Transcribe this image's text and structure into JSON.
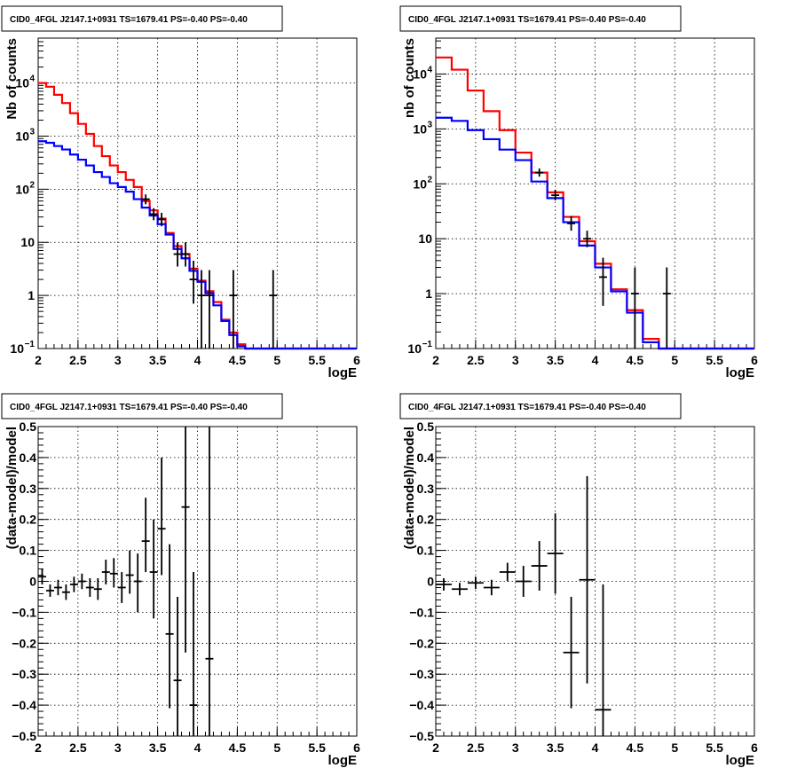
{
  "chart_data": [
    {
      "type": "line",
      "title": "CID0_4FGL J2147.1+0931 TS=1679.41 PS=-0.40 PS=-0.40",
      "xlabel": "logE",
      "ylabel": "Nb of counts",
      "xlim": [
        2,
        6
      ],
      "ylim": [
        0.1,
        70000
      ],
      "yscale": "log",
      "grid": true,
      "x_ticks": [
        "2",
        "2.5",
        "3",
        "3.5",
        "4",
        "4.5",
        "5",
        "5.5",
        "6"
      ],
      "y_ticks": [
        {
          "v": 0.1,
          "label": "10",
          "sup": "−1"
        },
        {
          "v": 1,
          "label": "1",
          "sup": ""
        },
        {
          "v": 10,
          "label": "10",
          "sup": ""
        },
        {
          "v": 100,
          "label": "10",
          "sup": "2"
        },
        {
          "v": 1000,
          "label": "10",
          "sup": "3"
        },
        {
          "v": 10000,
          "label": "10",
          "sup": "4"
        }
      ],
      "bin_edges": [
        2.0,
        2.1,
        2.2,
        2.3,
        2.4,
        2.5,
        2.6,
        2.7,
        2.8,
        2.9,
        3.0,
        3.1,
        3.2,
        3.3,
        3.4,
        3.5,
        3.6,
        3.7,
        3.8,
        3.9,
        4.0,
        4.1,
        4.2,
        4.3,
        4.4,
        4.5,
        4.6,
        4.7,
        4.8,
        4.9,
        5.0,
        5.1,
        5.2,
        5.3,
        5.4,
        5.5,
        5.6,
        5.7,
        5.8,
        5.9,
        6.0
      ],
      "series": [
        {
          "color": "#ff0000",
          "values": [
            10000,
            8500,
            6000,
            4200,
            2700,
            1700,
            1100,
            650,
            420,
            280,
            210,
            150,
            110,
            60,
            40,
            28,
            15,
            8.5,
            6,
            3.2,
            1.9,
            1.2,
            0.75,
            0.35,
            0.2,
            0.12,
            0.1,
            0.1,
            0.1,
            0.1,
            0.1,
            0.1,
            0.1,
            0.1,
            0.1,
            0.1,
            0.1,
            0.1,
            0.1,
            0.1
          ]
        },
        {
          "color": "#0000ff",
          "values": [
            800,
            750,
            650,
            560,
            450,
            360,
            280,
            210,
            170,
            130,
            110,
            90,
            65,
            45,
            32,
            22,
            14,
            7.5,
            5,
            2.9,
            1.8,
            1.1,
            0.65,
            0.33,
            0.18,
            0.11,
            0.1,
            0.1,
            0.1,
            0.1,
            0.1,
            0.1,
            0.1,
            0.1,
            0.1,
            0.1,
            0.1,
            0.1,
            0.1,
            0.1
          ]
        }
      ],
      "points": [
        {
          "x": 3.35,
          "y": 65,
          "lo": 52,
          "hi": 80
        },
        {
          "x": 3.45,
          "y": 34,
          "lo": 26,
          "hi": 44
        },
        {
          "x": 3.55,
          "y": 27,
          "lo": 20,
          "hi": 36
        },
        {
          "x": 3.75,
          "y": 6,
          "lo": 3.5,
          "hi": 10
        },
        {
          "x": 3.85,
          "y": 6,
          "lo": 3.5,
          "hi": 10
        },
        {
          "x": 3.95,
          "y": 2,
          "lo": 0.7,
          "hi": 4.5
        },
        {
          "x": 4.05,
          "y": 1,
          "lo": 0.1,
          "hi": 3
        },
        {
          "x": 4.15,
          "y": 1,
          "lo": 0.1,
          "hi": 3
        },
        {
          "x": 4.45,
          "y": 1,
          "lo": 0.1,
          "hi": 3
        },
        {
          "x": 4.95,
          "y": 1,
          "lo": 0.1,
          "hi": 3
        }
      ]
    },
    {
      "type": "line",
      "title": "CID0_4FGL J2147.1+0931 TS=1679.41 PS=-0.40 PS=-0.40",
      "xlabel": "logE",
      "ylabel": "nb of counts",
      "xlim": [
        2,
        6
      ],
      "ylim": [
        0.1,
        45000
      ],
      "yscale": "log",
      "grid": true,
      "x_ticks": [
        "2",
        "2.5",
        "3",
        "3.5",
        "4",
        "4.5",
        "5",
        "5.5",
        "6"
      ],
      "y_ticks": [
        {
          "v": 0.1,
          "label": "10",
          "sup": "−1"
        },
        {
          "v": 1,
          "label": "1",
          "sup": ""
        },
        {
          "v": 10,
          "label": "10",
          "sup": ""
        },
        {
          "v": 100,
          "label": "10",
          "sup": "2"
        },
        {
          "v": 1000,
          "label": "10",
          "sup": "3"
        },
        {
          "v": 10000,
          "label": "10",
          "sup": "4"
        }
      ],
      "bin_edges": [
        2.0,
        2.2,
        2.4,
        2.6,
        2.8,
        3.0,
        3.2,
        3.4,
        3.6,
        3.8,
        4.0,
        4.2,
        4.4,
        4.6,
        4.8,
        5.0,
        5.2,
        5.4,
        5.6,
        5.8,
        6.0
      ],
      "series": [
        {
          "color": "#ff0000",
          "values": [
            20000,
            12000,
            5000,
            2100,
            950,
            370,
            160,
            70,
            25,
            9,
            3.5,
            1.2,
            0.5,
            0.15,
            0.1,
            0.1,
            0.1,
            0.1,
            0.1,
            0.1
          ]
        },
        {
          "color": "#0000ff",
          "values": [
            1600,
            1400,
            950,
            650,
            420,
            270,
            110,
            55,
            20,
            7.5,
            3,
            1.1,
            0.45,
            0.13,
            0.1,
            0.1,
            0.1,
            0.1,
            0.1,
            0.1
          ]
        }
      ],
      "points": [
        {
          "x": 3.3,
          "y": 160,
          "lo": 135,
          "hi": 190
        },
        {
          "x": 3.5,
          "y": 62,
          "lo": 50,
          "hi": 78
        },
        {
          "x": 3.7,
          "y": 19,
          "lo": 14,
          "hi": 26
        },
        {
          "x": 3.9,
          "y": 10,
          "lo": 7,
          "hi": 14
        },
        {
          "x": 4.1,
          "y": 2,
          "lo": 0.6,
          "hi": 4.5
        },
        {
          "x": 4.5,
          "y": 1,
          "lo": 0.1,
          "hi": 3
        },
        {
          "x": 4.9,
          "y": 1,
          "lo": 0.1,
          "hi": 3
        }
      ]
    },
    {
      "type": "scatter",
      "title": "CID0_4FGL J2147.1+0931 TS=1679.41 PS=-0.40 PS=-0.40",
      "xlabel": "logE",
      "ylabel": "(data-model)/model",
      "xlim": [
        2,
        6
      ],
      "ylim": [
        -0.5,
        0.5
      ],
      "yscale": "linear",
      "grid": true,
      "x_ticks": [
        "2",
        "2.5",
        "3",
        "3.5",
        "4",
        "4.5",
        "5",
        "5.5",
        "6"
      ],
      "y_ticks_linear": [
        "−0.5",
        "−0.4",
        "−0.3",
        "−0.2",
        "−0.1",
        "0",
        "0.1",
        "0.2",
        "0.3",
        "0.4",
        "0.5"
      ],
      "xerr": 0.05,
      "points": [
        {
          "x": 2.05,
          "y": 0.015,
          "lo": -0.01,
          "hi": 0.04
        },
        {
          "x": 2.15,
          "y": -0.03,
          "lo": -0.05,
          "hi": -0.01
        },
        {
          "x": 2.25,
          "y": -0.02,
          "lo": -0.045,
          "hi": 0.005
        },
        {
          "x": 2.35,
          "y": -0.035,
          "lo": -0.06,
          "hi": -0.01
        },
        {
          "x": 2.45,
          "y": -0.01,
          "lo": -0.035,
          "hi": 0.015
        },
        {
          "x": 2.55,
          "y": 0.0,
          "lo": -0.025,
          "hi": 0.025
        },
        {
          "x": 2.65,
          "y": -0.02,
          "lo": -0.05,
          "hi": 0.01
        },
        {
          "x": 2.75,
          "y": -0.025,
          "lo": -0.06,
          "hi": 0.01
        },
        {
          "x": 2.85,
          "y": 0.03,
          "lo": -0.01,
          "hi": 0.07
        },
        {
          "x": 2.95,
          "y": 0.025,
          "lo": -0.02,
          "hi": 0.075
        },
        {
          "x": 3.05,
          "y": -0.02,
          "lo": -0.07,
          "hi": 0.03
        },
        {
          "x": 3.15,
          "y": 0.02,
          "lo": -0.04,
          "hi": 0.1
        },
        {
          "x": 3.25,
          "y": 0.0,
          "lo": -0.1,
          "hi": 0.09
        },
        {
          "x": 3.35,
          "y": 0.13,
          "lo": 0.03,
          "hi": 0.27
        },
        {
          "x": 3.45,
          "y": 0.03,
          "lo": -0.12,
          "hi": 0.2
        },
        {
          "x": 3.55,
          "y": 0.17,
          "lo": 0.02,
          "hi": 0.4
        },
        {
          "x": 3.65,
          "y": -0.17,
          "lo": -0.41,
          "hi": 0.12
        },
        {
          "x": 3.75,
          "y": -0.32,
          "lo": -0.5,
          "hi": -0.05
        },
        {
          "x": 3.85,
          "y": 0.24,
          "lo": -0.23,
          "hi": 0.5
        },
        {
          "x": 3.95,
          "y": -0.4,
          "lo": -0.5,
          "hi": 0.03
        },
        {
          "x": 4.15,
          "y": -0.25,
          "lo": -0.5,
          "hi": 0.5
        }
      ]
    },
    {
      "type": "scatter",
      "title": "CID0_4FGL J2147.1+0931 TS=1679.41 PS=-0.40 PS=-0.40",
      "xlabel": "logE",
      "ylabel": "(data-model)/model",
      "xlim": [
        2,
        6
      ],
      "ylim": [
        -0.5,
        0.5
      ],
      "yscale": "linear",
      "grid": true,
      "x_ticks": [
        "2",
        "2.5",
        "3",
        "3.5",
        "4",
        "4.5",
        "5",
        "5.5",
        "6"
      ],
      "y_ticks_linear": [
        "−0.5",
        "−0.4",
        "−0.3",
        "−0.2",
        "−0.1",
        "0",
        "0.1",
        "0.2",
        "0.3",
        "0.4",
        "0.5"
      ],
      "xerr": 0.1,
      "points": [
        {
          "x": 2.1,
          "y": -0.01,
          "lo": -0.03,
          "hi": 0.01
        },
        {
          "x": 2.3,
          "y": -0.025,
          "lo": -0.045,
          "hi": -0.005
        },
        {
          "x": 2.5,
          "y": -0.005,
          "lo": -0.025,
          "hi": 0.015
        },
        {
          "x": 2.7,
          "y": -0.02,
          "lo": -0.045,
          "hi": 0.005
        },
        {
          "x": 2.9,
          "y": 0.03,
          "lo": 0.0,
          "hi": 0.06
        },
        {
          "x": 3.1,
          "y": 0.0,
          "lo": -0.05,
          "hi": 0.05
        },
        {
          "x": 3.3,
          "y": 0.05,
          "lo": -0.03,
          "hi": 0.13
        },
        {
          "x": 3.5,
          "y": 0.09,
          "lo": -0.04,
          "hi": 0.22
        },
        {
          "x": 3.7,
          "y": -0.23,
          "lo": -0.41,
          "hi": -0.05
        },
        {
          "x": 3.9,
          "y": 0.005,
          "lo": -0.33,
          "hi": 0.34
        },
        {
          "x": 4.1,
          "y": -0.415,
          "lo": -0.5,
          "hi": -0.01
        }
      ]
    }
  ]
}
